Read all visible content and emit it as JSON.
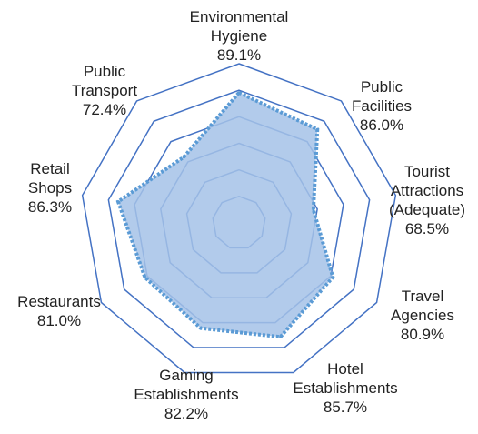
{
  "chart_data": {
    "type": "radar",
    "categories": [
      "Environmental Hygiene",
      "Public Facilities",
      "Tourist Attractions (Adequate)",
      "Travel Agencies",
      "Hotel Establishments",
      "Gaming Establishments",
      "Restaurants",
      "Retail Shops",
      "Public Transport"
    ],
    "values": [
      89.1,
      86.0,
      68.5,
      80.9,
      85.7,
      82.2,
      81.0,
      86.3,
      72.4
    ],
    "value_labels": [
      "89.1%",
      "86.0%",
      "68.5%",
      "80.9%",
      "85.7%",
      "82.2%",
      "81.0%",
      "86.3%",
      "72.4%"
    ],
    "color": "#5b9bd5",
    "fill": "#a4c2e8",
    "grid_color": "#4472c4",
    "rlim": [
      40,
      100
    ],
    "rticks": [
      50,
      60,
      70,
      80,
      90,
      100
    ]
  }
}
